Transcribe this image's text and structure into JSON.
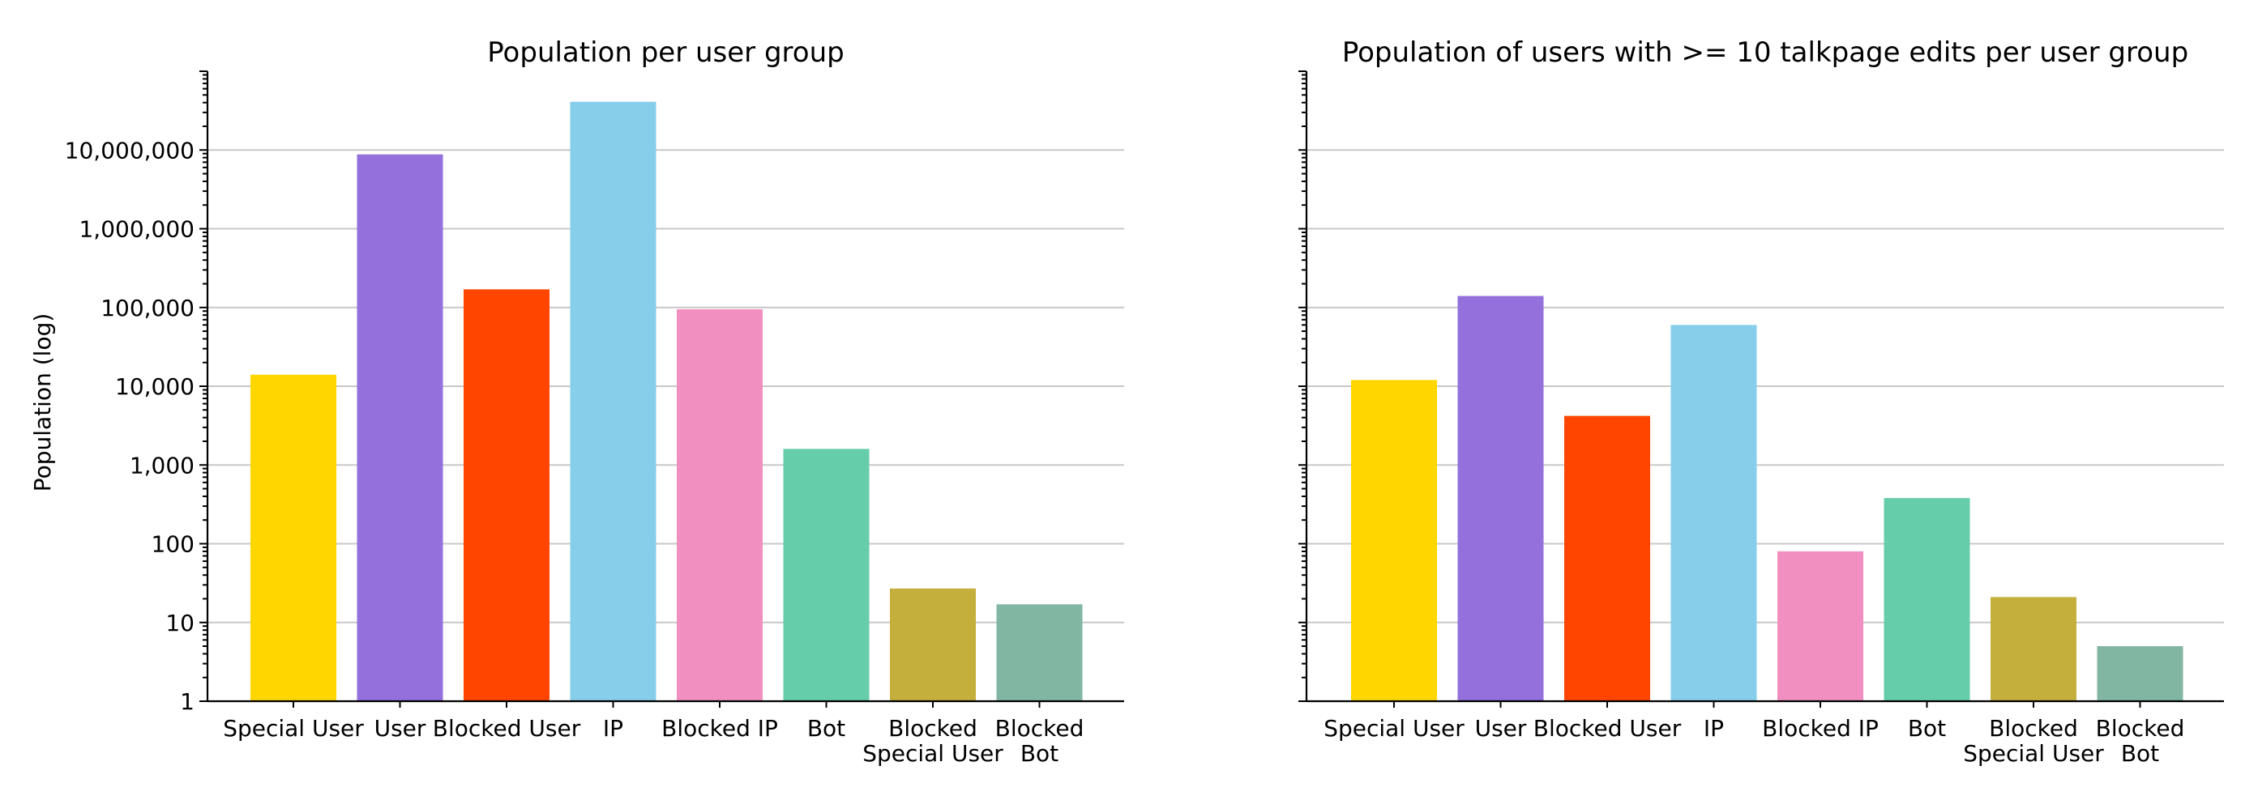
{
  "colors": [
    "#FFD600",
    "#9370DB",
    "#FF4500",
    "#87CEEB",
    "#F08FC0",
    "#66CDAA",
    "#C4AF3C",
    "#80B6A2"
  ],
  "chart_data": [
    {
      "type": "bar",
      "title": "Population per user group",
      "ylabel": "Population (log)",
      "yscale": "log",
      "ylim": [
        1,
        100000000
      ],
      "grid": true,
      "ytick_values": [
        1,
        10,
        100,
        1000,
        10000,
        100000,
        1000000,
        10000000
      ],
      "ytick_labels": [
        "1",
        "10",
        "100",
        "1,000",
        "10,000",
        "100,000",
        "1,000,000",
        "10,000,000"
      ],
      "categories": [
        [
          "Special User"
        ],
        [
          "User"
        ],
        [
          "Blocked User"
        ],
        [
          "IP"
        ],
        [
          "Blocked IP"
        ],
        [
          "Bot"
        ],
        [
          "Blocked",
          "Special User"
        ],
        [
          "Blocked",
          "Bot"
        ]
      ],
      "values": [
        14000,
        8800000,
        170000,
        41000000,
        95000,
        1600,
        27,
        17
      ]
    },
    {
      "type": "bar",
      "title": "Population of users with >= 10 talkpage edits per user group",
      "ylabel": "",
      "yscale": "log",
      "ylim": [
        1,
        100000000
      ],
      "grid": true,
      "ytick_values": [
        1,
        10,
        100,
        1000,
        10000,
        100000,
        1000000,
        10000000
      ],
      "ytick_labels": [],
      "categories": [
        [
          "Special User"
        ],
        [
          "User"
        ],
        [
          "Blocked User"
        ],
        [
          "IP"
        ],
        [
          "Blocked IP"
        ],
        [
          "Bot"
        ],
        [
          "Blocked",
          "Special User"
        ],
        [
          "Blocked",
          "Bot"
        ]
      ],
      "values": [
        12000,
        140000,
        4200,
        60000,
        80,
        380,
        21,
        5
      ]
    }
  ]
}
